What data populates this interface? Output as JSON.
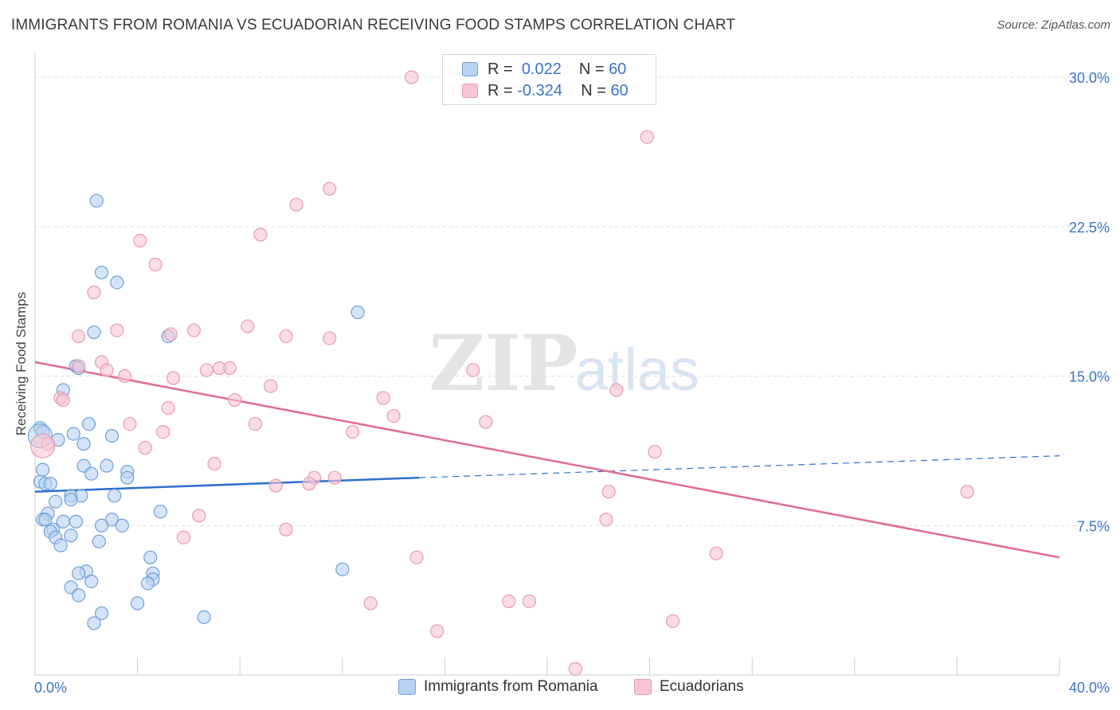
{
  "title": "IMMIGRANTS FROM ROMANIA VS ECUADORIAN RECEIVING FOOD STAMPS CORRELATION CHART",
  "source": "Source: ZipAtlas.com",
  "watermark": {
    "zip": "ZIP",
    "atlas": "atlas"
  },
  "legend_top": [
    {
      "r_label": "R =",
      "r_value": "0.022",
      "n_label": "N =",
      "n_value": "60"
    },
    {
      "r_label": "R =",
      "r_value": "-0.324",
      "n_label": "N =",
      "n_value": "60"
    }
  ],
  "colors": {
    "blue_fill": "#b8d2f3",
    "blue_stroke": "#6f9fd8",
    "blue_line": "#2b6fd0",
    "pink_fill": "#f7c5d4",
    "pink_stroke": "#e899b2",
    "pink_line": "#e06a93",
    "axis_text": "#3b73c8",
    "grid": "#dddddd"
  },
  "chart_data": {
    "type": "scatter",
    "title": "IMMIGRANTS FROM ROMANIA VS ECUADORIAN RECEIVING FOOD STAMPS CORRELATION CHART",
    "xlabel": "",
    "ylabel": "Receiving Food Stamps",
    "xlim": [
      0,
      40
    ],
    "ylim": [
      0,
      31
    ],
    "x_tick_labels": [
      "0.0%",
      "40.0%"
    ],
    "y_ticks": [
      7.5,
      15.0,
      22.5,
      30.0
    ],
    "y_tick_labels": [
      "7.5%",
      "15.0%",
      "22.5%",
      "30.0%"
    ],
    "grid": true,
    "legend_position": "top-center and bottom",
    "series": [
      {
        "name": "Immigrants from Romania",
        "color": "#6f9fd8",
        "points": [
          [
            2.4,
            23.8
          ],
          [
            2.6,
            20.2
          ],
          [
            3.2,
            19.7
          ],
          [
            12.6,
            18.2
          ],
          [
            2.3,
            17.2
          ],
          [
            5.2,
            17.0
          ],
          [
            1.6,
            15.5
          ],
          [
            1.7,
            15.4
          ],
          [
            1.1,
            14.3
          ],
          [
            0.2,
            12.4
          ],
          [
            0.3,
            12.2
          ],
          [
            2.1,
            12.6
          ],
          [
            1.5,
            12.1
          ],
          [
            3.0,
            12.0
          ],
          [
            0.9,
            11.8
          ],
          [
            1.9,
            11.6
          ],
          [
            1.9,
            10.5
          ],
          [
            2.8,
            10.5
          ],
          [
            0.3,
            10.3
          ],
          [
            3.6,
            10.2
          ],
          [
            2.2,
            10.1
          ],
          [
            3.6,
            9.9
          ],
          [
            0.2,
            9.7
          ],
          [
            0.4,
            9.6
          ],
          [
            0.6,
            9.6
          ],
          [
            1.4,
            9.0
          ],
          [
            1.8,
            9.0
          ],
          [
            3.1,
            9.0
          ],
          [
            1.4,
            8.8
          ],
          [
            0.8,
            8.7
          ],
          [
            4.9,
            8.2
          ],
          [
            0.5,
            8.1
          ],
          [
            0.3,
            7.8
          ],
          [
            0.4,
            7.8
          ],
          [
            1.1,
            7.7
          ],
          [
            1.6,
            7.7
          ],
          [
            3.0,
            7.8
          ],
          [
            2.6,
            7.5
          ],
          [
            3.4,
            7.5
          ],
          [
            0.7,
            7.3
          ],
          [
            0.6,
            7.2
          ],
          [
            1.4,
            7.0
          ],
          [
            0.8,
            6.9
          ],
          [
            2.5,
            6.7
          ],
          [
            1.0,
            6.5
          ],
          [
            4.5,
            5.9
          ],
          [
            12.0,
            5.3
          ],
          [
            2.0,
            5.2
          ],
          [
            1.7,
            5.1
          ],
          [
            4.6,
            5.1
          ],
          [
            4.6,
            4.8
          ],
          [
            2.2,
            4.7
          ],
          [
            4.4,
            4.6
          ],
          [
            1.4,
            4.4
          ],
          [
            1.7,
            4.0
          ],
          [
            4.0,
            3.6
          ],
          [
            2.6,
            3.1
          ],
          [
            6.6,
            2.9
          ],
          [
            2.3,
            2.6
          ],
          [
            0.2,
            12.0
          ]
        ]
      },
      {
        "name": "Ecuadorians",
        "color": "#e899b2",
        "points": [
          [
            14.7,
            30.0
          ],
          [
            23.9,
            27.0
          ],
          [
            11.5,
            24.4
          ],
          [
            10.2,
            23.6
          ],
          [
            8.8,
            22.1
          ],
          [
            4.1,
            21.8
          ],
          [
            4.7,
            20.6
          ],
          [
            2.3,
            19.2
          ],
          [
            9.8,
            17.0
          ],
          [
            11.5,
            16.9
          ],
          [
            5.3,
            17.1
          ],
          [
            8.3,
            17.5
          ],
          [
            6.2,
            17.3
          ],
          [
            3.2,
            17.3
          ],
          [
            1.7,
            17.0
          ],
          [
            2.6,
            15.7
          ],
          [
            7.6,
            15.4
          ],
          [
            6.7,
            15.3
          ],
          [
            7.2,
            15.4
          ],
          [
            2.8,
            15.3
          ],
          [
            1.7,
            15.5
          ],
          [
            3.5,
            15.0
          ],
          [
            5.4,
            14.9
          ],
          [
            17.1,
            15.3
          ],
          [
            9.2,
            14.5
          ],
          [
            22.7,
            14.3
          ],
          [
            1.0,
            13.9
          ],
          [
            1.1,
            13.8
          ],
          [
            7.8,
            13.8
          ],
          [
            13.6,
            13.9
          ],
          [
            5.2,
            13.4
          ],
          [
            14.0,
            13.0
          ],
          [
            3.7,
            12.6
          ],
          [
            8.6,
            12.6
          ],
          [
            17.6,
            12.7
          ],
          [
            5.0,
            12.2
          ],
          [
            12.4,
            12.2
          ],
          [
            0.5,
            11.6
          ],
          [
            4.3,
            11.4
          ],
          [
            24.2,
            11.2
          ],
          [
            7.0,
            10.6
          ],
          [
            10.9,
            9.9
          ],
          [
            11.7,
            9.9
          ],
          [
            10.7,
            9.6
          ],
          [
            9.4,
            9.5
          ],
          [
            22.4,
            9.2
          ],
          [
            36.4,
            9.2
          ],
          [
            6.4,
            8.0
          ],
          [
            22.3,
            7.8
          ],
          [
            9.8,
            7.3
          ],
          [
            5.8,
            6.9
          ],
          [
            26.6,
            6.1
          ],
          [
            14.9,
            5.9
          ],
          [
            13.1,
            3.6
          ],
          [
            18.5,
            3.7
          ],
          [
            19.3,
            3.7
          ],
          [
            24.9,
            2.7
          ],
          [
            15.7,
            2.2
          ],
          [
            21.1,
            0.3
          ],
          [
            0.3,
            11.5
          ]
        ]
      }
    ],
    "trend_lines": [
      {
        "series": "Immigrants from Romania",
        "solid_from": [
          0,
          9.2
        ],
        "solid_to": [
          15,
          9.9
        ],
        "dashed_to": [
          40,
          11.0
        ]
      },
      {
        "series": "Ecuadorians",
        "from": [
          0,
          15.7
        ],
        "to": [
          40,
          5.9
        ]
      }
    ]
  },
  "legend_bottom": [
    "Immigrants from Romania",
    "Ecuadorians"
  ]
}
